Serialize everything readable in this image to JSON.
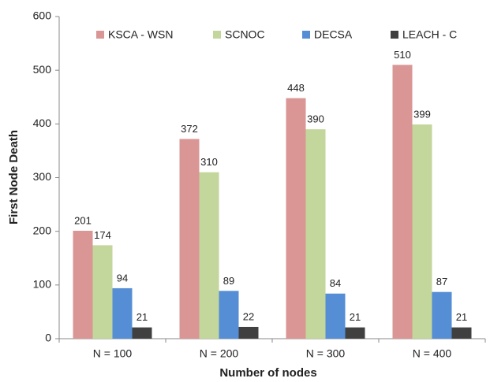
{
  "chart_data": {
    "type": "bar",
    "xlabel": "Number of nodes",
    "ylabel": "First Node Death",
    "categories": [
      "N = 100",
      "N = 200",
      "N = 300",
      "N = 400"
    ],
    "series": [
      {
        "name": "KSCA - WSN",
        "color": "#d99694",
        "values": [
          201,
          372,
          448,
          510
        ]
      },
      {
        "name": "SCNOC",
        "color": "#c3d69b",
        "values": [
          174,
          310,
          390,
          399
        ]
      },
      {
        "name": "DECSA",
        "color": "#558ed5",
        "values": [
          94,
          89,
          84,
          87
        ]
      },
      {
        "name": "LEACH - C",
        "color": "#404040",
        "values": [
          21,
          22,
          21,
          21
        ]
      }
    ],
    "ylim": [
      0,
      600
    ],
    "yticks": [
      0,
      100,
      200,
      300,
      400,
      500,
      600
    ],
    "legend": "top"
  }
}
